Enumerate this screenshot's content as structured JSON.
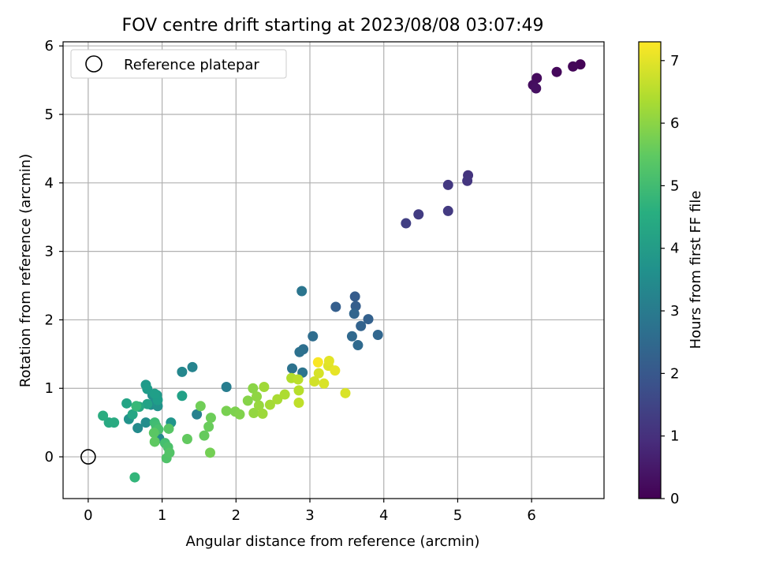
{
  "chart_data": {
    "type": "scatter",
    "title": "FOV centre drift starting at 2023/08/08 03:07:49",
    "xlabel": "Angular distance from reference (arcmin)",
    "ylabel": "Rotation from reference (arcmin)",
    "xlim": [
      -0.34,
      6.98
    ],
    "ylim": [
      -0.61,
      6.06
    ],
    "xticks": [
      0,
      1,
      2,
      3,
      4,
      5,
      6
    ],
    "yticks": [
      0,
      1,
      2,
      3,
      4,
      5,
      6
    ],
    "grid": true,
    "legend": {
      "placement": "upper left",
      "entries": [
        "Reference platepar"
      ]
    },
    "reference_point": {
      "x": 0,
      "y": 0,
      "label": "Reference platepar"
    },
    "colorbar": {
      "label": "Hours from first FF file",
      "min": 0,
      "max": 7.3,
      "ticks": [
        0,
        1,
        2,
        3,
        4,
        5,
        6,
        7
      ],
      "colormap": "viridis"
    },
    "series": [
      {
        "columns": [
          "x",
          "y",
          "hours"
        ],
        "points": [
          [
            6.66,
            5.73,
            0.05
          ],
          [
            6.56,
            5.7,
            0.1
          ],
          [
            6.34,
            5.62,
            0.15
          ],
          [
            6.07,
            5.53,
            0.2
          ],
          [
            6.02,
            5.43,
            0.25
          ],
          [
            6.06,
            5.38,
            0.3
          ],
          [
            5.14,
            4.11,
            1.1
          ],
          [
            5.13,
            4.03,
            1.15
          ],
          [
            4.87,
            3.97,
            1.2
          ],
          [
            4.87,
            3.59,
            1.25
          ],
          [
            4.47,
            3.54,
            1.3
          ],
          [
            4.3,
            3.41,
            1.35
          ],
          [
            3.61,
            2.34,
            2.1
          ],
          [
            3.62,
            2.2,
            2.15
          ],
          [
            3.35,
            2.19,
            2.2
          ],
          [
            3.79,
            2.01,
            2.25
          ],
          [
            3.69,
            1.91,
            2.3
          ],
          [
            3.6,
            2.09,
            2.35
          ],
          [
            3.92,
            1.78,
            2.4
          ],
          [
            3.57,
            1.76,
            2.45
          ],
          [
            3.65,
            1.63,
            2.5
          ],
          [
            3.04,
            1.76,
            2.6
          ],
          [
            2.91,
            1.57,
            2.65
          ],
          [
            2.86,
            1.53,
            2.7
          ],
          [
            2.76,
            1.29,
            2.75
          ],
          [
            2.9,
            1.23,
            2.8
          ],
          [
            2.89,
            2.42,
            2.85
          ],
          [
            1.87,
            1.02,
            3.1
          ],
          [
            1.47,
            0.62,
            3.2
          ],
          [
            1.41,
            1.31,
            3.3
          ],
          [
            1.27,
            1.24,
            3.4
          ],
          [
            0.96,
            0.27,
            3.45
          ],
          [
            0.67,
            0.42,
            3.5
          ],
          [
            0.78,
            0.5,
            3.55
          ],
          [
            0.85,
            0.76,
            3.6
          ],
          [
            0.87,
            0.9,
            3.65
          ],
          [
            0.94,
            0.74,
            3.7
          ],
          [
            0.55,
            0.55,
            3.75
          ],
          [
            1.12,
            0.5,
            3.8
          ],
          [
            0.93,
            0.9,
            3.9
          ],
          [
            0.78,
            1.05,
            3.95
          ],
          [
            0.8,
            0.99,
            4.0
          ],
          [
            0.94,
            0.83,
            4.05
          ],
          [
            0.9,
            0.92,
            4.1
          ],
          [
            1.27,
            0.89,
            4.15
          ],
          [
            0.8,
            0.77,
            4.2
          ],
          [
            0.52,
            0.78,
            4.25
          ],
          [
            0.6,
            0.62,
            4.3
          ],
          [
            0.69,
            0.73,
            4.35
          ],
          [
            0.28,
            0.5,
            4.4
          ],
          [
            0.35,
            0.5,
            4.45
          ],
          [
            0.2,
            0.6,
            4.5
          ],
          [
            0.63,
            -0.3,
            4.8
          ],
          [
            0.65,
            0.74,
            4.9
          ],
          [
            0.9,
            0.5,
            5.0
          ],
          [
            0.92,
            0.45,
            5.05
          ],
          [
            1.04,
            0.2,
            5.1
          ],
          [
            0.95,
            0.4,
            5.15
          ],
          [
            1.08,
            0.14,
            5.2
          ],
          [
            1.06,
            -0.02,
            5.25
          ],
          [
            1.1,
            0.06,
            5.3
          ],
          [
            1.09,
            0.41,
            5.35
          ],
          [
            0.89,
            0.35,
            5.4
          ],
          [
            0.9,
            0.22,
            5.45
          ],
          [
            1.34,
            0.26,
            5.5
          ],
          [
            1.57,
            0.31,
            5.55
          ],
          [
            1.63,
            0.44,
            5.6
          ],
          [
            1.66,
            0.57,
            5.65
          ],
          [
            1.52,
            0.74,
            5.7
          ],
          [
            1.65,
            0.06,
            5.75
          ],
          [
            1.87,
            0.67,
            5.8
          ],
          [
            1.99,
            0.66,
            5.85
          ],
          [
            2.05,
            0.62,
            5.9
          ],
          [
            2.16,
            0.82,
            5.95
          ],
          [
            2.23,
            1.0,
            6.0
          ],
          [
            2.28,
            0.88,
            6.05
          ],
          [
            2.24,
            0.64,
            6.1
          ],
          [
            2.31,
            0.75,
            6.15
          ],
          [
            2.36,
            0.63,
            6.2
          ],
          [
            2.38,
            1.02,
            6.25
          ],
          [
            2.46,
            0.76,
            6.3
          ],
          [
            2.56,
            0.84,
            6.35
          ],
          [
            2.66,
            0.91,
            6.4
          ],
          [
            2.75,
            1.15,
            6.45
          ],
          [
            2.85,
            0.97,
            6.5
          ],
          [
            2.84,
            1.13,
            6.55
          ],
          [
            2.85,
            0.79,
            6.6
          ],
          [
            3.06,
            1.1,
            6.8
          ],
          [
            3.12,
            1.22,
            6.85
          ],
          [
            3.19,
            1.07,
            6.9
          ],
          [
            3.25,
            1.33,
            6.95
          ],
          [
            3.26,
            1.4,
            7.0
          ],
          [
            3.34,
            1.26,
            7.05
          ],
          [
            3.48,
            0.93,
            6.9
          ],
          [
            3.11,
            1.38,
            7.25
          ]
        ]
      }
    ]
  }
}
